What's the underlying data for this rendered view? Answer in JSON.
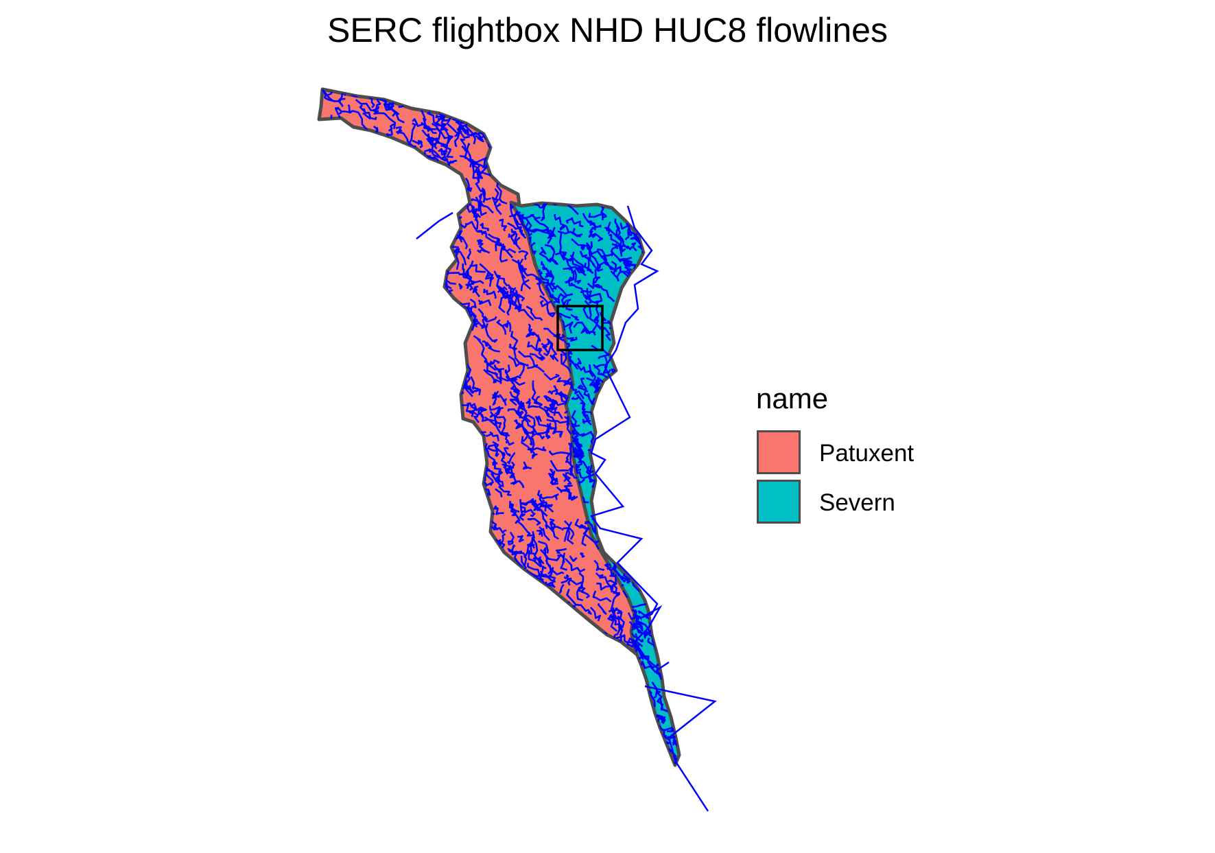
{
  "title": "SERC flightbox NHD HUC8 flowlines",
  "legend": {
    "title": "name",
    "items": [
      {
        "label": "Patuxent",
        "color": "#f8766d"
      },
      {
        "label": "Severn",
        "color": "#00bfc4"
      }
    ]
  },
  "colors": {
    "flowlines": "#0000ff",
    "boundary": "#4d4d4d",
    "flightbox": "#000000"
  }
}
